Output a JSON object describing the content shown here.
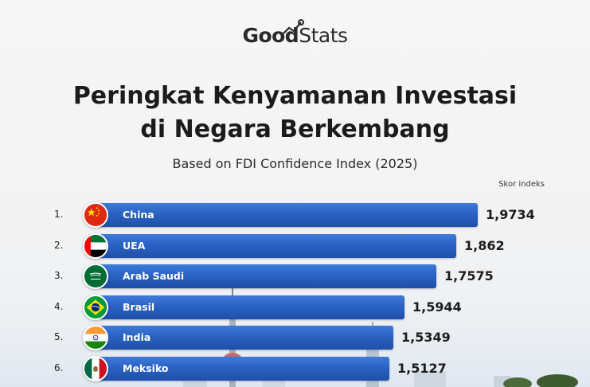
{
  "logo": {
    "part1": "Good",
    "part2": "Stats"
  },
  "header": {
    "title_line1": "Peringkat Kenyamanan Investasi",
    "title_line2": "di Negara Berkembang",
    "subtitle": "Based on FDI Confidence Index (2025)",
    "unit_label": "Skor indeks"
  },
  "chart_data": {
    "type": "bar",
    "orientation": "horizontal",
    "title": "Peringkat Kenyamanan Investasi di Negara Berkembang",
    "subtitle": "Based on FDI Confidence Index (2025)",
    "xlabel": "Skor indeks",
    "ylabel": "",
    "xlim": [
      0,
      2.2
    ],
    "grid": false,
    "legend": "none",
    "bar_color": "#2a62c4",
    "ranks": [
      "1.",
      "2.",
      "3.",
      "4.",
      "5.",
      "6."
    ],
    "categories": [
      "China",
      "UEA",
      "Arab Saudi",
      "Brasil",
      "India",
      "Meksiko"
    ],
    "values": [
      1.9734,
      1.862,
      1.7575,
      1.5944,
      1.5349,
      1.5127
    ],
    "value_labels": [
      "1,9734",
      "1,862",
      "1,7575",
      "1,5944",
      "1,5349",
      "1,5127"
    ],
    "flags": [
      "china-flag-icon",
      "uae-flag-icon",
      "saudi-flag-icon",
      "brazil-flag-icon",
      "india-flag-icon",
      "mexico-flag-icon"
    ]
  }
}
